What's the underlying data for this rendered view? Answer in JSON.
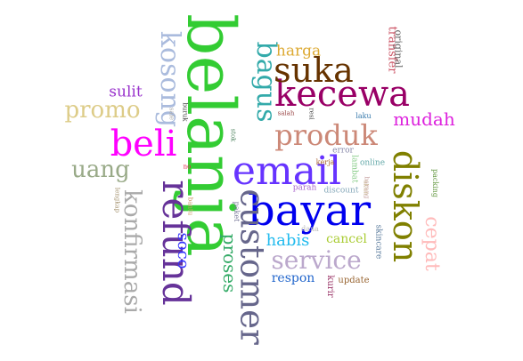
{
  "words": [
    {
      "text": "belanja",
      "color": "#33cc33"
    },
    {
      "text": "email",
      "color": "#6633ff"
    },
    {
      "text": "bayar",
      "color": "#0000ee"
    },
    {
      "text": "kecewa",
      "color": "#990066"
    },
    {
      "text": "diskon",
      "color": "#808000"
    },
    {
      "text": "refund",
      "color": "#663399"
    },
    {
      "text": "customer",
      "color": "#66668b"
    },
    {
      "text": "beli",
      "color": "#ff00ff"
    },
    {
      "text": "suka",
      "color": "#663300"
    },
    {
      "text": "produk",
      "color": "#cc8877"
    },
    {
      "text": "kosong",
      "color": "#aabbdd"
    },
    {
      "text": "bagus",
      "color": "#33aaaa"
    },
    {
      "text": "service",
      "color": "#bba8cc"
    },
    {
      "text": "konfirmasi",
      "color": "#aaaaaa"
    },
    {
      "text": "uang",
      "color": "#99aa88"
    },
    {
      "text": "promo",
      "color": "#ddcc88"
    },
    {
      "text": "cepat",
      "color": "#ffbbbb"
    },
    {
      "text": "mudah",
      "color": "#dd22dd"
    },
    {
      "text": "proses",
      "color": "#33aa66"
    },
    {
      "text": "soco",
      "color": "#3333ff"
    },
    {
      "text": "habis",
      "color": "#22bbee"
    },
    {
      "text": "harga",
      "color": "#ddaa33"
    },
    {
      "text": "sulit",
      "color": "#9933cc"
    },
    {
      "text": "cancel",
      "color": "#aacc33"
    },
    {
      "text": "respon",
      "color": "#2266cc"
    },
    {
      "text": "transfer",
      "color": "#cc5566"
    },
    {
      "text": "original",
      "color": "#666666"
    },
    {
      "text": "kurir",
      "color": "#993366"
    },
    {
      "text": "update",
      "color": "#996633"
    },
    {
      "text": "skincare",
      "color": "#557799"
    },
    {
      "text": "packing",
      "color": "#669944"
    },
    {
      "text": "online",
      "color": "#66aaaa"
    },
    {
      "text": "error",
      "color": "#8888aa"
    },
    {
      "text": "lambat",
      "color": "#88cc88"
    },
    {
      "text": "discount",
      "color": "#88aabb"
    },
    {
      "text": "parah",
      "color": "#aa66cc"
    },
    {
      "text": "kerja",
      "color": "#aa6633"
    },
    {
      "text": "dana",
      "color": "#bbbbbb"
    },
    {
      "text": "laku",
      "color": "#3377aa"
    },
    {
      "text": "resi",
      "color": "#444444"
    },
    {
      "text": "salah",
      "color": "#994444"
    },
    {
      "text": "stok",
      "color": "#558866"
    },
    {
      "text": "paket",
      "color": "#777799"
    },
    {
      "text": "buruk",
      "color": "#444444"
    },
    {
      "text": "sale",
      "color": "#aaaaaa"
    },
    {
      "text": "no",
      "color": "#dd2244"
    },
    {
      "text": "lengkap",
      "color": "#aa9977"
    },
    {
      "text": "barang",
      "color": "#ccaaaa"
    },
    {
      "text": "bantu",
      "color": "#cc9966"
    },
    {
      "text": "akun",
      "color": "#ccbb99"
    }
  ]
}
